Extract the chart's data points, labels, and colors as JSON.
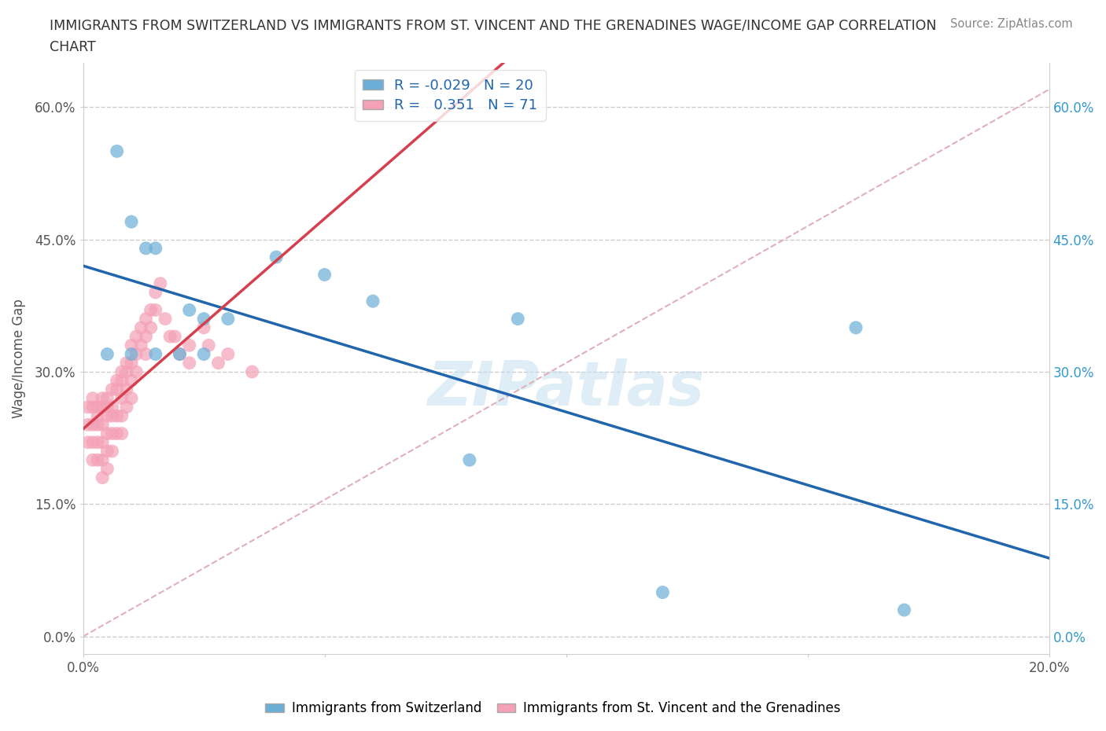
{
  "title_line1": "IMMIGRANTS FROM SWITZERLAND VS IMMIGRANTS FROM ST. VINCENT AND THE GRENADINES WAGE/INCOME GAP CORRELATION",
  "title_line2": "CHART",
  "source": "Source: ZipAtlas.com",
  "ylabel": "Wage/Income Gap",
  "xlim": [
    0.0,
    0.2
  ],
  "ylim": [
    -0.02,
    0.65
  ],
  "yticks": [
    0.0,
    0.15,
    0.3,
    0.45,
    0.6
  ],
  "ytick_labels": [
    "0.0%",
    "15.0%",
    "30.0%",
    "45.0%",
    "60.0%"
  ],
  "xtick_positions": [
    0.0,
    0.05,
    0.1,
    0.15,
    0.2
  ],
  "xtick_labels": [
    "0.0%",
    "",
    "",
    "",
    "20.0%"
  ],
  "grid_color": "#cccccc",
  "background_color": "#ffffff",
  "watermark": "ZIPatlas",
  "swiss_color": "#6baed6",
  "svg_color": "#f4a0b5",
  "swiss_line_color": "#2166ac",
  "svg_line_color": "#d6404e",
  "ref_line_color": "#e0b0b8",
  "swiss_R": -0.029,
  "swiss_N": 20,
  "svg_R": 0.351,
  "svg_N": 71,
  "swiss_points_x": [
    0.005,
    0.007,
    0.01,
    0.01,
    0.013,
    0.015,
    0.015,
    0.02,
    0.022,
    0.025,
    0.025,
    0.03,
    0.04,
    0.05,
    0.06,
    0.08,
    0.09,
    0.12,
    0.16,
    0.17
  ],
  "swiss_points_y": [
    0.32,
    0.55,
    0.47,
    0.32,
    0.44,
    0.44,
    0.32,
    0.32,
    0.37,
    0.36,
    0.32,
    0.36,
    0.43,
    0.41,
    0.38,
    0.2,
    0.36,
    0.05,
    0.35,
    0.03
  ],
  "svg_points_x": [
    0.001,
    0.001,
    0.001,
    0.002,
    0.002,
    0.002,
    0.002,
    0.002,
    0.003,
    0.003,
    0.003,
    0.003,
    0.003,
    0.004,
    0.004,
    0.004,
    0.004,
    0.004,
    0.004,
    0.005,
    0.005,
    0.005,
    0.005,
    0.005,
    0.005,
    0.006,
    0.006,
    0.006,
    0.006,
    0.006,
    0.007,
    0.007,
    0.007,
    0.007,
    0.008,
    0.008,
    0.008,
    0.008,
    0.008,
    0.009,
    0.009,
    0.009,
    0.009,
    0.01,
    0.01,
    0.01,
    0.01,
    0.011,
    0.011,
    0.011,
    0.012,
    0.012,
    0.013,
    0.013,
    0.013,
    0.014,
    0.014,
    0.015,
    0.015,
    0.016,
    0.017,
    0.018,
    0.019,
    0.02,
    0.022,
    0.022,
    0.025,
    0.026,
    0.028,
    0.03,
    0.035
  ],
  "svg_points_y": [
    0.26,
    0.24,
    0.22,
    0.27,
    0.26,
    0.24,
    0.22,
    0.2,
    0.26,
    0.25,
    0.24,
    0.22,
    0.2,
    0.27,
    0.26,
    0.24,
    0.22,
    0.2,
    0.18,
    0.27,
    0.26,
    0.25,
    0.23,
    0.21,
    0.19,
    0.28,
    0.26,
    0.25,
    0.23,
    0.21,
    0.29,
    0.28,
    0.25,
    0.23,
    0.3,
    0.29,
    0.27,
    0.25,
    0.23,
    0.31,
    0.3,
    0.28,
    0.26,
    0.33,
    0.31,
    0.29,
    0.27,
    0.34,
    0.32,
    0.3,
    0.35,
    0.33,
    0.36,
    0.34,
    0.32,
    0.37,
    0.35,
    0.39,
    0.37,
    0.4,
    0.36,
    0.34,
    0.34,
    0.32,
    0.33,
    0.31,
    0.35,
    0.33,
    0.31,
    0.32,
    0.3
  ]
}
